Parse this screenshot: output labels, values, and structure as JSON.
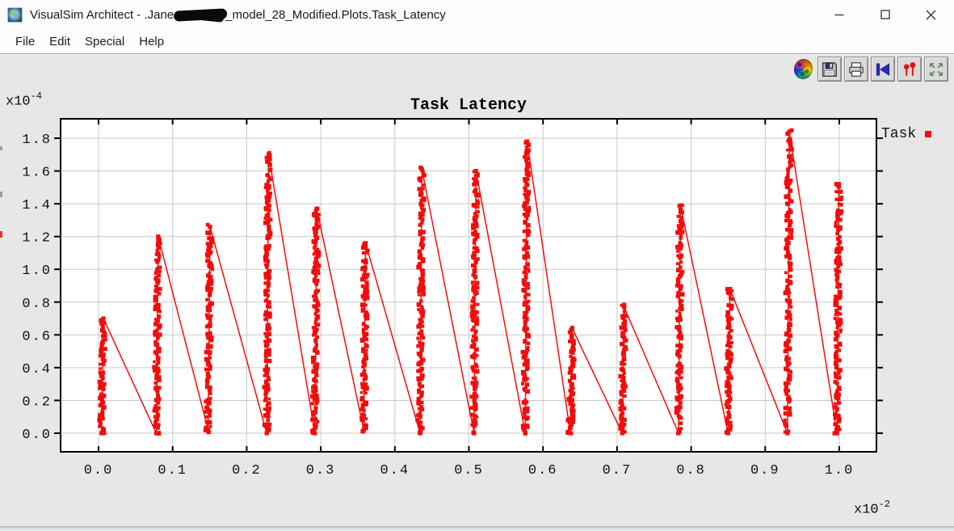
{
  "window": {
    "app_icon": "globe-icon",
    "title_prefix": "VisualSim Architect - .Jane",
    "title_redaction": "black-scribble-over-name",
    "title_suffix": "_model_28_Modified.Plots.Task_Latency",
    "controls": [
      "minimize",
      "maximize",
      "close"
    ]
  },
  "menu": {
    "items": [
      "File",
      "Edit",
      "Special",
      "Help"
    ]
  },
  "toolbar": {
    "buttons": [
      "plot-logo",
      "save",
      "print",
      "reset-axes",
      "edit-marks",
      "fill-plot"
    ]
  },
  "chart_data": {
    "type": "scatter",
    "title": "Task Latency",
    "grid": true,
    "legend_position": "outside-right",
    "series": [
      {
        "name": "Task",
        "color": "#f20d0d",
        "marker": "filled-square",
        "pattern": "dense vertical burst clusters rising from base to peak, each peak connected by a thin descending line to the next burst base (sawtooth)"
      }
    ],
    "x_axis": {
      "tick_labels": [
        "0.0",
        "0.1",
        "0.2",
        "0.3",
        "0.4",
        "0.5",
        "0.6",
        "0.7",
        "0.8",
        "0.9",
        "1.0"
      ],
      "multiplier_base": "x10",
      "multiplier_exponent": "-2",
      "range": [
        -0.051,
        1.05
      ]
    },
    "y_axis": {
      "tick_labels": [
        "0.0",
        "0.2",
        "0.4",
        "0.6",
        "0.8",
        "1.0",
        "1.2",
        "1.4",
        "1.6",
        "1.8"
      ],
      "multiplier_base": "x10",
      "multiplier_exponent": "-4",
      "range": [
        -0.12,
        1.92
      ]
    },
    "bursts": [
      {
        "x": 0.004,
        "base": 0.0,
        "peak": 0.7
      },
      {
        "x": 0.078,
        "base": 0.0,
        "peak": 1.2
      },
      {
        "x": 0.148,
        "base": 0.02,
        "peak": 1.26
      },
      {
        "x": 0.227,
        "base": 0.0,
        "peak": 1.7
      },
      {
        "x": 0.292,
        "base": 0.0,
        "peak": 1.37
      },
      {
        "x": 0.358,
        "base": 0.02,
        "peak": 1.16
      },
      {
        "x": 0.434,
        "base": 0.0,
        "peak": 1.61
      },
      {
        "x": 0.507,
        "base": 0.0,
        "peak": 1.6
      },
      {
        "x": 0.576,
        "base": 0.0,
        "peak": 1.78
      },
      {
        "x": 0.637,
        "base": 0.0,
        "peak": 0.64
      },
      {
        "x": 0.707,
        "base": 0.0,
        "peak": 0.77
      },
      {
        "x": 0.783,
        "base": 0.0,
        "peak": 1.39
      },
      {
        "x": 0.85,
        "base": 0.0,
        "peak": 0.88
      },
      {
        "x": 0.93,
        "base": 0.0,
        "peak": 1.84
      },
      {
        "x": 0.997,
        "base": 0.0,
        "peak": 1.52
      }
    ],
    "colors": {
      "grid": "#c9c9c9",
      "border": "#000000",
      "plot_background": "#ffffff"
    }
  }
}
